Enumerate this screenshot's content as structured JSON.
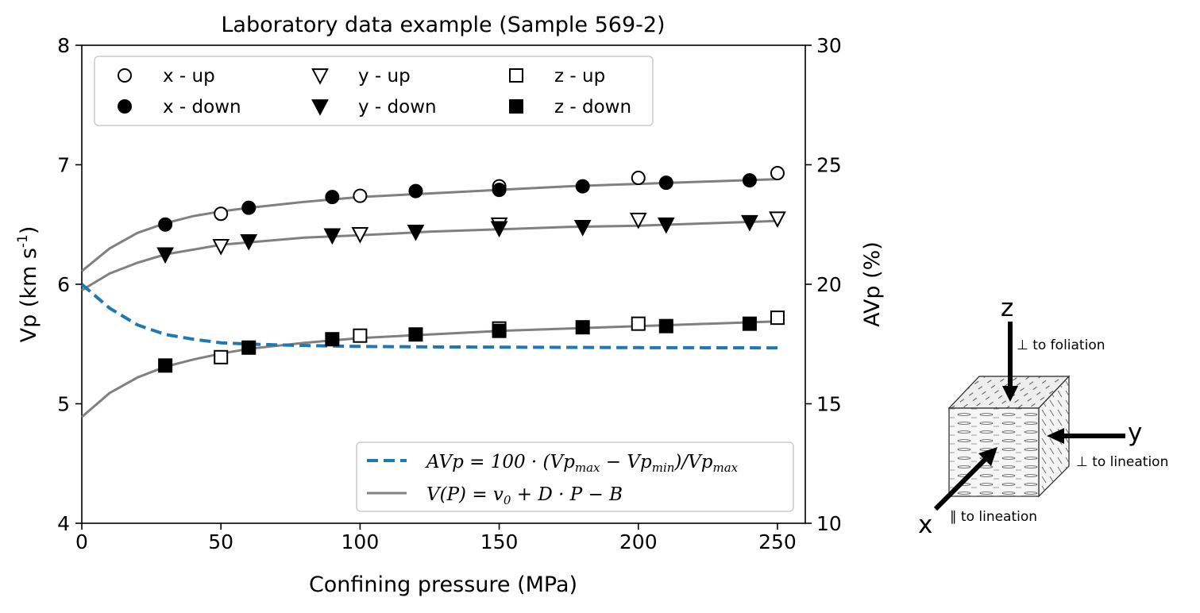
{
  "chart_data": {
    "type": "scatter",
    "title": "Laboratory data example (Sample 569-2)",
    "xlabel": "Confining pressure (MPa)",
    "ylabel_main": "Vp (km s",
    "ylabel_sup": "-1",
    "ylabel_close": ")",
    "y2label": "AVp (%)",
    "xlim": [
      0,
      260
    ],
    "ylim": [
      4,
      8
    ],
    "y2lim": [
      10,
      30
    ],
    "xticks": [
      0,
      50,
      100,
      150,
      200,
      250
    ],
    "yticks": [
      4,
      5,
      6,
      7,
      8
    ],
    "y2ticks": [
      10,
      15,
      20,
      25,
      30
    ],
    "grid": false,
    "legend_top": {
      "placement": "top",
      "entries": [
        {
          "label": "x - up",
          "marker": "circle",
          "filled": false
        },
        {
          "label": "y - up",
          "marker": "triangle-down",
          "filled": false
        },
        {
          "label": "z - up",
          "marker": "square",
          "filled": false
        },
        {
          "label": "x - down",
          "marker": "circle",
          "filled": true
        },
        {
          "label": "y - down",
          "marker": "triangle-down",
          "filled": true
        },
        {
          "label": "z - down",
          "marker": "square",
          "filled": true
        }
      ]
    },
    "legend_bottom": {
      "placement": "lower-right",
      "entries": [
        {
          "text_parts": [
            "AVp = 100 · (Vp",
            "max",
            " − Vp",
            "min",
            ")/Vp",
            "max"
          ],
          "style": "dashed",
          "color": "#1f77b4"
        },
        {
          "text_parts": [
            "V(P) = v",
            "0",
            " + D · P − B"
          ],
          "style": "solid",
          "color": "#808080"
        }
      ]
    },
    "series": [
      {
        "name": "x - up",
        "marker": "circle",
        "filled": false,
        "x": [
          50,
          100,
          150,
          200,
          250
        ],
        "y": [
          6.59,
          6.74,
          6.82,
          6.89,
          6.93
        ]
      },
      {
        "name": "x - down",
        "marker": "circle",
        "filled": true,
        "x": [
          30,
          60,
          90,
          120,
          150,
          180,
          210,
          240
        ],
        "y": [
          6.5,
          6.64,
          6.73,
          6.78,
          6.79,
          6.82,
          6.85,
          6.87
        ]
      },
      {
        "name": "y - up",
        "marker": "triangle-down",
        "filled": false,
        "x": [
          50,
          100,
          150,
          200,
          250
        ],
        "y": [
          6.32,
          6.42,
          6.5,
          6.54,
          6.55
        ]
      },
      {
        "name": "y - down",
        "marker": "triangle-down",
        "filled": true,
        "x": [
          30,
          60,
          90,
          120,
          150,
          180,
          210,
          240
        ],
        "y": [
          6.25,
          6.36,
          6.41,
          6.44,
          6.47,
          6.48,
          6.5,
          6.52
        ]
      },
      {
        "name": "z - up",
        "marker": "square",
        "filled": false,
        "x": [
          50,
          100,
          150,
          200,
          250
        ],
        "y": [
          5.39,
          5.57,
          5.63,
          5.67,
          5.72
        ]
      },
      {
        "name": "z - down",
        "marker": "square",
        "filled": true,
        "x": [
          30,
          60,
          90,
          120,
          150,
          180,
          210,
          240
        ],
        "y": [
          5.32,
          5.47,
          5.54,
          5.58,
          5.61,
          5.64,
          5.65,
          5.67
        ]
      }
    ],
    "fit_curves": [
      {
        "name": "fit-x",
        "x": [
          0,
          10,
          20,
          30,
          40,
          50,
          60,
          80,
          100,
          125,
          150,
          175,
          200,
          225,
          250
        ],
        "y": [
          6.11,
          6.3,
          6.43,
          6.51,
          6.57,
          6.61,
          6.64,
          6.69,
          6.73,
          6.76,
          6.79,
          6.82,
          6.84,
          6.86,
          6.88
        ]
      },
      {
        "name": "fit-y",
        "x": [
          0,
          10,
          20,
          30,
          40,
          50,
          60,
          80,
          100,
          125,
          150,
          175,
          200,
          225,
          250
        ],
        "y": [
          5.95,
          6.09,
          6.18,
          6.25,
          6.29,
          6.33,
          6.35,
          6.39,
          6.41,
          6.44,
          6.46,
          6.48,
          6.49,
          6.51,
          6.53
        ]
      },
      {
        "name": "fit-z",
        "x": [
          0,
          10,
          20,
          30,
          40,
          50,
          60,
          80,
          100,
          125,
          150,
          175,
          200,
          225,
          250
        ],
        "y": [
          4.89,
          5.09,
          5.22,
          5.31,
          5.37,
          5.42,
          5.46,
          5.51,
          5.55,
          5.58,
          5.61,
          5.63,
          5.65,
          5.67,
          5.69
        ]
      }
    ],
    "avp_curve": {
      "axis": "y2",
      "x": [
        0,
        10,
        20,
        30,
        40,
        50,
        60,
        75,
        100,
        125,
        150,
        200,
        250
      ],
      "y": [
        20.0,
        19.0,
        18.3,
        17.9,
        17.7,
        17.55,
        17.5,
        17.45,
        17.4,
        17.38,
        17.37,
        17.35,
        17.34
      ]
    }
  },
  "inset": {
    "labels": {
      "z": "z",
      "y": "y",
      "x": "x",
      "z_note": "⊥ to foliation",
      "y_note": "⊥ to lineation",
      "x_note": "∥ to lineation"
    }
  }
}
